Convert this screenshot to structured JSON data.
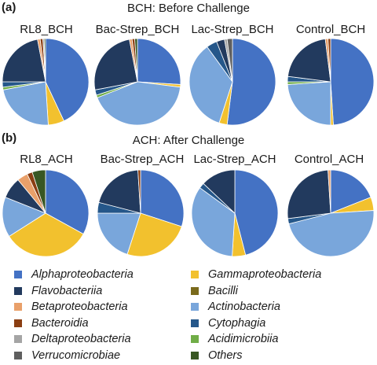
{
  "panels": [
    {
      "tag": "(a)",
      "title": "BCH: Before Challenge"
    },
    {
      "tag": "(b)",
      "title": "ACH: After Challenge"
    }
  ],
  "chart_data": [
    {
      "type": "pie",
      "title": "RL8_BCH",
      "slices": [
        {
          "category": "Alphaproteobacteria",
          "value": 43
        },
        {
          "category": "Gammaproteobacteria",
          "value": 6
        },
        {
          "category": "Actinobacteria",
          "value": 23
        },
        {
          "category": "Acidimicrobiia",
          "value": 1
        },
        {
          "category": "Cytophagia",
          "value": 2
        },
        {
          "category": "Flavobacteriia",
          "value": 22
        },
        {
          "category": "Betaproteobacteria",
          "value": 1
        },
        {
          "category": "Bacteroidia",
          "value": 1
        },
        {
          "category": "Deltaproteobacteria",
          "value": 0.5
        },
        {
          "category": "Others",
          "value": 0.5
        }
      ]
    },
    {
      "type": "pie",
      "title": "Bac-Strep_BCH",
      "slices": [
        {
          "category": "Alphaproteobacteria",
          "value": 26
        },
        {
          "category": "Gammaproteobacteria",
          "value": 1
        },
        {
          "category": "Actinobacteria",
          "value": 42
        },
        {
          "category": "Acidimicrobiia",
          "value": 1
        },
        {
          "category": "Cytophagia",
          "value": 2
        },
        {
          "category": "Flavobacteriia",
          "value": 25
        },
        {
          "category": "Betaproteobacteria",
          "value": 1
        },
        {
          "category": "Bacteroidia",
          "value": 1
        },
        {
          "category": "Others",
          "value": 1
        }
      ]
    },
    {
      "type": "pie",
      "title": "Lac-Strep_BCH",
      "slices": [
        {
          "category": "Alphaproteobacteria",
          "value": 52
        },
        {
          "category": "Gammaproteobacteria",
          "value": 3
        },
        {
          "category": "Actinobacteria",
          "value": 35
        },
        {
          "category": "Cytophagia",
          "value": 4
        },
        {
          "category": "Flavobacteriia",
          "value": 3
        },
        {
          "category": "Deltaproteobacteria",
          "value": 1
        },
        {
          "category": "Verrucomicrobiae",
          "value": 2
        }
      ]
    },
    {
      "type": "pie",
      "title": "Control_BCH",
      "slices": [
        {
          "category": "Alphaproteobacteria",
          "value": 49
        },
        {
          "category": "Gammaproteobacteria",
          "value": 1
        },
        {
          "category": "Actinobacteria",
          "value": 24
        },
        {
          "category": "Acidimicrobiia",
          "value": 1
        },
        {
          "category": "Cytophagia",
          "value": 2
        },
        {
          "category": "Flavobacteriia",
          "value": 21
        },
        {
          "category": "Betaproteobacteria",
          "value": 1
        },
        {
          "category": "Bacteroidia",
          "value": 1
        }
      ]
    },
    {
      "type": "pie",
      "title": "RL8_ACH",
      "slices": [
        {
          "category": "Alphaproteobacteria",
          "value": 33
        },
        {
          "category": "Gammaproteobacteria",
          "value": 33
        },
        {
          "category": "Actinobacteria",
          "value": 15
        },
        {
          "category": "Flavobacteriia",
          "value": 8
        },
        {
          "category": "Betaproteobacteria",
          "value": 4
        },
        {
          "category": "Bacteroidia",
          "value": 2
        },
        {
          "category": "Others",
          "value": 5
        }
      ]
    },
    {
      "type": "pie",
      "title": "Bac-Strep_ACH",
      "slices": [
        {
          "category": "Alphaproteobacteria",
          "value": 30
        },
        {
          "category": "Gammaproteobacteria",
          "value": 25
        },
        {
          "category": "Actinobacteria",
          "value": 20
        },
        {
          "category": "Cytophagia",
          "value": 4
        },
        {
          "category": "Flavobacteriia",
          "value": 20
        },
        {
          "category": "Bacteroidia",
          "value": 1
        }
      ]
    },
    {
      "type": "pie",
      "title": "Lac-Strep_ACH",
      "slices": [
        {
          "category": "Alphaproteobacteria",
          "value": 46
        },
        {
          "category": "Gammaproteobacteria",
          "value": 5
        },
        {
          "category": "Actinobacteria",
          "value": 34
        },
        {
          "category": "Cytophagia",
          "value": 2
        },
        {
          "category": "Flavobacteriia",
          "value": 13
        }
      ]
    },
    {
      "type": "pie",
      "title": "Control_ACH",
      "slices": [
        {
          "category": "Alphaproteobacteria",
          "value": 19
        },
        {
          "category": "Gammaproteobacteria",
          "value": 5
        },
        {
          "category": "Actinobacteria",
          "value": 47
        },
        {
          "category": "Cytophagia",
          "value": 2
        },
        {
          "category": "Flavobacteriia",
          "value": 26
        },
        {
          "category": "Betaproteobacteria",
          "value": 1
        }
      ]
    }
  ],
  "legend": [
    {
      "label": "Alphaproteobacteria",
      "color": "#4472c4"
    },
    {
      "label": "Flavobacteriia",
      "color": "#223a5e"
    },
    {
      "label": "Betaproteobacteria",
      "color": "#e9a06a"
    },
    {
      "label": "Bacteroidia",
      "color": "#8b3e12"
    },
    {
      "label": "Deltaproteobacteria",
      "color": "#a5a5a5"
    },
    {
      "label": "Verrucomicrobiae",
      "color": "#5f5f5f"
    },
    {
      "label": "Gammaproteobacteria",
      "color": "#f2c12e"
    },
    {
      "label": "Bacilli",
      "color": "#7a6a1c"
    },
    {
      "label": "Actinobacteria",
      "color": "#79a6db"
    },
    {
      "label": "Cytophagia",
      "color": "#25578a"
    },
    {
      "label": "Acidimicrobiia",
      "color": "#70ad47"
    },
    {
      "label": "Others",
      "color": "#385723"
    }
  ]
}
